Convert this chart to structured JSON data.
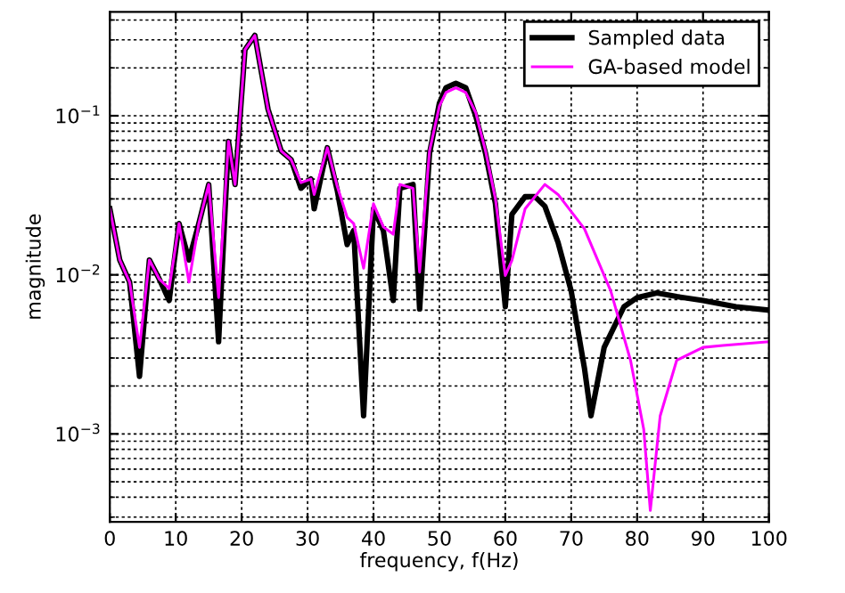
{
  "chart_data": {
    "type": "line",
    "xlabel": "frequency, f(Hz)",
    "ylabel": "magnitude",
    "log": "y",
    "grid": true,
    "legend": "top right",
    "xlim": [
      0,
      100
    ],
    "xticks": [
      0,
      10,
      20,
      30,
      40,
      50,
      60,
      70,
      80,
      90,
      100
    ],
    "ylim": [
      0.00028,
      0.45
    ],
    "yticks": [
      {
        "value": 0.001,
        "label": "10$^{−3}$"
      },
      {
        "value": 0.01,
        "label": "10$^{−2}$"
      },
      {
        "value": 0.1,
        "label": "10$^{−1}$"
      }
    ],
    "series": [
      {
        "name": "Sampled data",
        "color": "#000000",
        "x": [
          0,
          1.5,
          3,
          4.5,
          6,
          7.5,
          9,
          10.5,
          12,
          13.5,
          15,
          16.5,
          18,
          19,
          20.5,
          22,
          24,
          26,
          27.5,
          29,
          30.5,
          31,
          33,
          34.5,
          36,
          37,
          38.5,
          40,
          41.5,
          43,
          44,
          46,
          47,
          48.5,
          50,
          51,
          52.5,
          54,
          55.5,
          57,
          58.5,
          60,
          61,
          63,
          64.5,
          66,
          68,
          70,
          72,
          73,
          75,
          78,
          80,
          83,
          86,
          90,
          95,
          100
        ],
        "values": [
          0.026,
          0.0124,
          0.009,
          0.0023,
          0.0124,
          0.0094,
          0.0069,
          0.021,
          0.0124,
          0.021,
          0.037,
          0.0038,
          0.069,
          0.037,
          0.26,
          0.32,
          0.11,
          0.06,
          0.053,
          0.035,
          0.04,
          0.026,
          0.063,
          0.034,
          0.0155,
          0.019,
          0.0013,
          0.026,
          0.019,
          0.0069,
          0.035,
          0.037,
          0.0061,
          0.058,
          0.12,
          0.15,
          0.16,
          0.15,
          0.1,
          0.058,
          0.028,
          0.0063,
          0.024,
          0.031,
          0.031,
          0.027,
          0.016,
          0.0079,
          0.0026,
          0.0013,
          0.0035,
          0.0063,
          0.0072,
          0.0077,
          0.0073,
          0.0069,
          0.0063,
          0.006
        ]
      },
      {
        "name": "GA-based model",
        "color": "#ff00ff",
        "x": [
          0,
          1.5,
          3,
          4.5,
          6,
          7.5,
          9,
          10.5,
          12,
          13.5,
          15,
          16.5,
          18,
          19,
          20.5,
          22,
          24,
          26,
          27.5,
          29,
          30.5,
          31,
          33,
          34.5,
          36,
          37,
          38.5,
          40,
          41.5,
          43,
          44,
          46,
          47,
          48.5,
          50,
          51,
          52.5,
          54,
          55.5,
          57,
          58.5,
          60,
          61,
          63,
          66,
          68,
          72,
          76,
          79,
          81,
          82,
          83.5,
          86,
          90,
          93,
          100
        ],
        "values": [
          0.026,
          0.0124,
          0.009,
          0.0035,
          0.0124,
          0.0094,
          0.0082,
          0.021,
          0.009,
          0.021,
          0.037,
          0.0072,
          0.069,
          0.037,
          0.26,
          0.32,
          0.11,
          0.06,
          0.053,
          0.038,
          0.04,
          0.032,
          0.063,
          0.036,
          0.023,
          0.021,
          0.011,
          0.028,
          0.02,
          0.018,
          0.037,
          0.035,
          0.0104,
          0.06,
          0.115,
          0.14,
          0.15,
          0.14,
          0.105,
          0.06,
          0.03,
          0.0099,
          0.0123,
          0.026,
          0.037,
          0.032,
          0.0195,
          0.0079,
          0.0029,
          0.00107,
          0.00033,
          0.0013,
          0.0029,
          0.0035,
          0.0036,
          0.0038
        ]
      }
    ]
  }
}
